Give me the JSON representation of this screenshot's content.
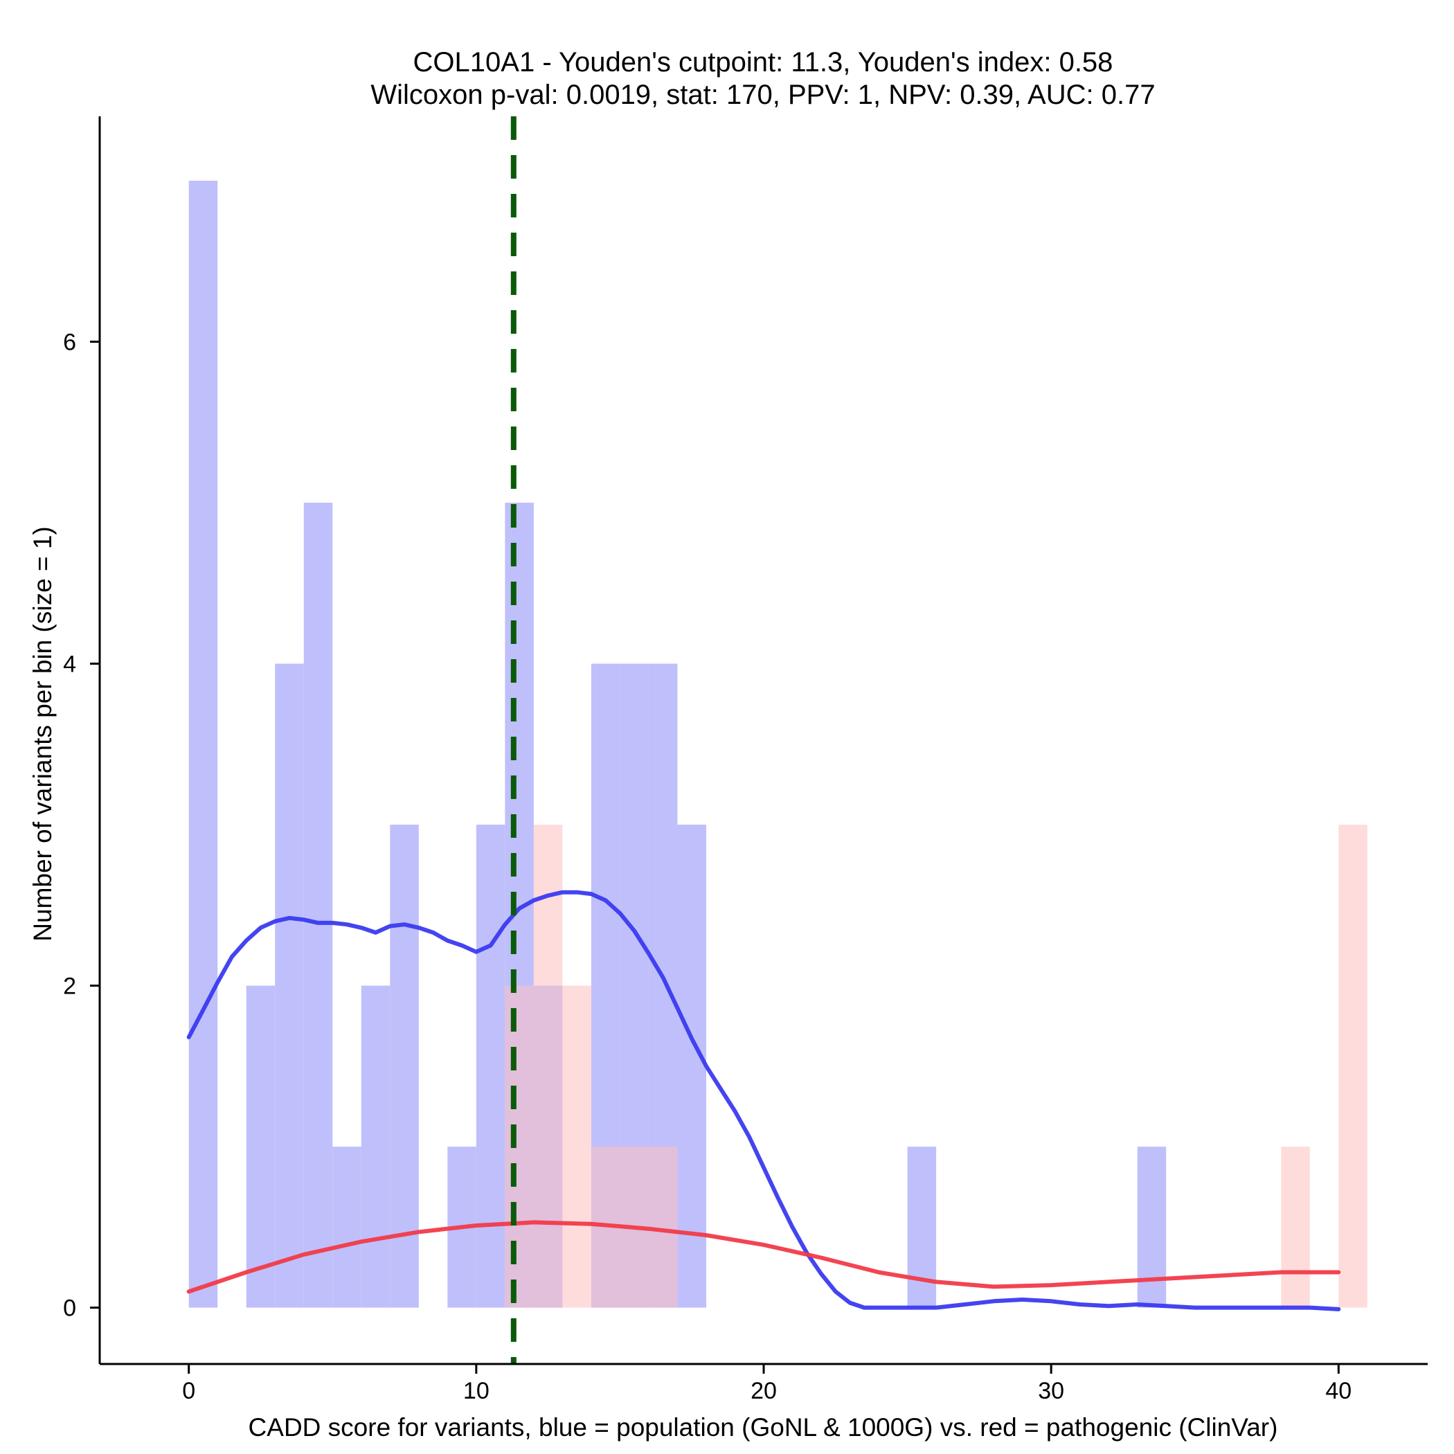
{
  "chart_data": {
    "type": "histogram",
    "title": "COL10A1 - Youden's cutpoint: 11.3, Youden's index: 0.58",
    "subtitle": "Wilcoxon p-val: 0.0019, stat: 170, PPV: 1, NPV: 0.39, AUC: 0.77",
    "xlabel": "CADD score for variants, blue = population (GoNL & 1000G) vs. red = pathogenic (ClinVar)",
    "ylabel": "Number of variants per bin (size = 1)",
    "xlim": [
      -3.1,
      43.1
    ],
    "ylim": [
      -0.35,
      7.4
    ],
    "xticks": [
      0,
      10,
      20,
      30,
      40
    ],
    "yticks": [
      0,
      2,
      4,
      6
    ],
    "bin_size": 1,
    "cutpoint": 11.3,
    "series": [
      {
        "name": "population (GoNL & 1000G)",
        "color": "#bfbffb",
        "bins": [
          {
            "x0": 0,
            "count": 7
          },
          {
            "x0": 2,
            "count": 2
          },
          {
            "x0": 3,
            "count": 4
          },
          {
            "x0": 4,
            "count": 5
          },
          {
            "x0": 5,
            "count": 1
          },
          {
            "x0": 6,
            "count": 2
          },
          {
            "x0": 7,
            "count": 3
          },
          {
            "x0": 9,
            "count": 1
          },
          {
            "x0": 10,
            "count": 3
          },
          {
            "x0": 11,
            "count": 5
          },
          {
            "x0": 12,
            "count": 2
          },
          {
            "x0": 14,
            "count": 4
          },
          {
            "x0": 15,
            "count": 4
          },
          {
            "x0": 16,
            "count": 4
          },
          {
            "x0": 17,
            "count": 3
          },
          {
            "x0": 25,
            "count": 1
          },
          {
            "x0": 33,
            "count": 1
          }
        ]
      },
      {
        "name": "pathogenic (ClinVar)",
        "color": "#ffbfbf",
        "bins": [
          {
            "x0": 11,
            "count": 2
          },
          {
            "x0": 12,
            "count": 3
          },
          {
            "x0": 13,
            "count": 2
          },
          {
            "x0": 14,
            "count": 1
          },
          {
            "x0": 15,
            "count": 1
          },
          {
            "x0": 16,
            "count": 1
          },
          {
            "x0": 38,
            "count": 1
          },
          {
            "x0": 40,
            "count": 3
          }
        ]
      }
    ],
    "density": [
      {
        "name": "population density",
        "color": "#3a3af0",
        "points": [
          [
            0,
            1.68
          ],
          [
            0.5,
            1.85
          ],
          [
            1,
            2.02
          ],
          [
            1.5,
            2.18
          ],
          [
            2,
            2.28
          ],
          [
            2.5,
            2.36
          ],
          [
            3,
            2.4
          ],
          [
            3.5,
            2.42
          ],
          [
            4,
            2.41
          ],
          [
            4.5,
            2.39
          ],
          [
            5,
            2.39
          ],
          [
            5.5,
            2.38
          ],
          [
            6,
            2.36
          ],
          [
            6.5,
            2.33
          ],
          [
            7,
            2.37
          ],
          [
            7.5,
            2.38
          ],
          [
            8,
            2.36
          ],
          [
            8.5,
            2.33
          ],
          [
            9,
            2.28
          ],
          [
            9.5,
            2.25
          ],
          [
            10,
            2.21
          ],
          [
            10.5,
            2.25
          ],
          [
            11,
            2.38
          ],
          [
            11.5,
            2.48
          ],
          [
            12,
            2.53
          ],
          [
            12.5,
            2.56
          ],
          [
            13,
            2.58
          ],
          [
            13.5,
            2.58
          ],
          [
            14,
            2.57
          ],
          [
            14.5,
            2.53
          ],
          [
            15,
            2.45
          ],
          [
            15.5,
            2.34
          ],
          [
            16,
            2.2
          ],
          [
            16.5,
            2.05
          ],
          [
            17,
            1.86
          ],
          [
            17.5,
            1.67
          ],
          [
            18,
            1.5
          ],
          [
            18.5,
            1.36
          ],
          [
            19,
            1.22
          ],
          [
            19.5,
            1.06
          ],
          [
            20,
            0.87
          ],
          [
            20.5,
            0.68
          ],
          [
            21,
            0.5
          ],
          [
            21.5,
            0.34
          ],
          [
            22,
            0.21
          ],
          [
            22.5,
            0.1
          ],
          [
            23,
            0.03
          ],
          [
            23.5,
            0.0
          ],
          [
            24,
            0.0
          ],
          [
            25,
            0.0
          ],
          [
            26,
            0.0
          ],
          [
            27,
            0.02
          ],
          [
            28,
            0.04
          ],
          [
            29,
            0.05
          ],
          [
            30,
            0.04
          ],
          [
            31,
            0.02
          ],
          [
            32,
            0.01
          ],
          [
            33,
            0.02
          ],
          [
            34,
            0.01
          ],
          [
            35,
            0.0
          ],
          [
            36,
            0.0
          ],
          [
            37,
            0.0
          ],
          [
            38,
            0.0
          ],
          [
            39,
            0.0
          ],
          [
            40,
            -0.01
          ]
        ]
      },
      {
        "name": "pathogenic density",
        "color": "#f23a48",
        "points": [
          [
            0,
            0.1
          ],
          [
            2,
            0.22
          ],
          [
            4,
            0.33
          ],
          [
            6,
            0.41
          ],
          [
            8,
            0.47
          ],
          [
            10,
            0.51
          ],
          [
            12,
            0.53
          ],
          [
            14,
            0.52
          ],
          [
            16,
            0.49
          ],
          [
            18,
            0.45
          ],
          [
            20,
            0.39
          ],
          [
            22,
            0.31
          ],
          [
            24,
            0.22
          ],
          [
            26,
            0.16
          ],
          [
            28,
            0.13
          ],
          [
            30,
            0.14
          ],
          [
            32,
            0.16
          ],
          [
            34,
            0.18
          ],
          [
            36,
            0.2
          ],
          [
            38,
            0.22
          ],
          [
            40,
            0.22
          ]
        ]
      }
    ]
  }
}
